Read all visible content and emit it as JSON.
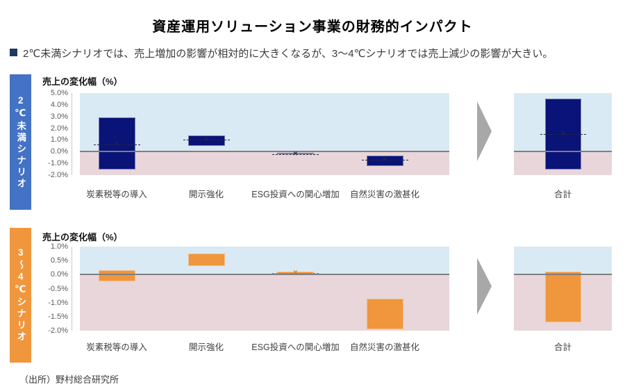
{
  "page": {
    "title": "資産運用ソリューション事業の財務的インパクト",
    "key_message": "2℃未満シナリオでは、売上増加の影響が相対的に大きくなるが、3〜4℃シナリオでは売上減少の影響が大きい。",
    "source": "（出所）野村総合研究所"
  },
  "colors": {
    "bullet_square": "#1F3864",
    "scenario_2c_sidebar": "#4472C4",
    "scenario_34c_sidebar": "#F0963C",
    "navy_bar": "#0A1377",
    "orange_bar": "#F0963C",
    "positive_region_bg": "#DAEAF4",
    "negative_region_bg": "#E8D6DA",
    "zero_line": "#7F7F7F",
    "arrow": "#A8A8A8"
  },
  "chart_data": [
    {
      "type": "bar",
      "subtype": "floating_range_bar",
      "scenario_label": "2℃未満シナリオ",
      "axis_title": "売上の変化幅（%）",
      "ylabel": "売上の変化幅（%）",
      "ylim": [
        -2.0,
        5.0
      ],
      "ytick_step": 1.0,
      "ytick_labels": [
        "5.0%",
        "4.0%",
        "3.0%",
        "2.0%",
        "1.0%",
        "0.0%",
        "-1.0%",
        "-2.0%"
      ],
      "grid": false,
      "categories": [
        "炭素税等の導入",
        "開示強化",
        "ESG投資への関心増加",
        "自然災害の激甚化"
      ],
      "ranges": [
        [
          -1.5,
          2.9
        ],
        [
          0.5,
          1.4
        ],
        [
          -0.25,
          -0.1
        ],
        [
          -1.2,
          -0.35
        ]
      ],
      "markers": [
        0.6,
        1.0,
        -0.2,
        -0.7
      ],
      "total": {
        "label": "合計",
        "range": [
          -1.5,
          4.5
        ],
        "marker": 1.5
      },
      "bar_color": "#0A1377",
      "bar_border": "#7880AA",
      "marker_color": "#23293F"
    },
    {
      "type": "bar",
      "subtype": "floating_range_bar",
      "scenario_label": "3〜4℃シナリオ",
      "axis_title": "売上の変化幅（%）",
      "ylabel": "売上の変化幅（%）",
      "ylim": [
        -2.0,
        1.0
      ],
      "ytick_step": 0.5,
      "ytick_labels": [
        "1.0%",
        "0.5%",
        "0.0%",
        "-0.5%",
        "-1.0%",
        "-1.5%",
        "-2.0%"
      ],
      "grid": false,
      "categories": [
        "炭素税等の導入",
        "開示強化",
        "ESG投資への関心増加",
        "自然災害の激甚化"
      ],
      "ranges": [
        [
          -0.25,
          0.15
        ],
        [
          0.3,
          0.75
        ],
        [
          0.0,
          0.1
        ],
        [
          -1.95,
          -0.85
        ]
      ],
      "markers": [
        null,
        null,
        0.05,
        null
      ],
      "total": {
        "label": "合計",
        "range": [
          -1.7,
          0.1
        ],
        "marker": null
      },
      "bar_color": "#F0963C",
      "bar_border": "#F5BE8C",
      "marker_color": "#C97E2A"
    }
  ]
}
